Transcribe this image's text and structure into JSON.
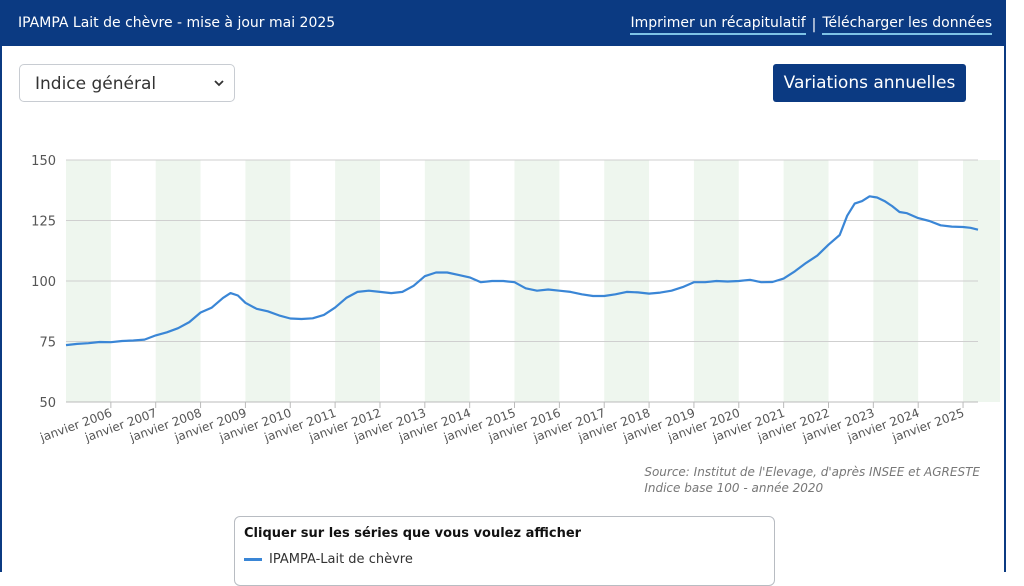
{
  "header": {
    "title": "IPAMPA Lait de chèvre - mise à jour mai 2025",
    "print_label": "Imprimer un récapitulatif",
    "separator": "|",
    "download_label": "Télécharger les données"
  },
  "controls": {
    "index_select_value": "Indice général",
    "annual_button_label": "Variations annuelles"
  },
  "source": {
    "line1": "Source: Institut de l'Elevage, d'après INSEE et AGRESTE",
    "line2": "Indice base 100 - année 2020"
  },
  "legend": {
    "title": "Cliquer sur les séries que vous voulez afficher"
  },
  "colors": {
    "accent": "#0b3a82",
    "series": "#3a86d6",
    "band": "#eef6ee"
  },
  "chart_data": {
    "type": "line",
    "title": "",
    "xlabel": "",
    "ylabel": "",
    "ylim": [
      50,
      150
    ],
    "yticks": [
      50,
      75,
      100,
      125,
      150
    ],
    "grid": true,
    "year_labels": [
      "janvier 2006",
      "janvier 2007",
      "janvier 2008",
      "janvier 2009",
      "janvier 2010",
      "janvier 2011",
      "janvier 2012",
      "janvier 2013",
      "janvier 2014",
      "janvier 2015",
      "janvier 2016",
      "janvier 2017",
      "janvier 2018",
      "janvier 2019",
      "janvier 2020",
      "janvier 2021",
      "janvier 2022",
      "janvier 2023",
      "janvier 2024",
      "janvier 2025"
    ],
    "x_range": [
      "2005-01",
      "2025-05"
    ],
    "alternate_year_bands": true,
    "series": [
      {
        "name": "IPAMPA-Lait de chèvre",
        "points": [
          [
            "2005-01",
            73.5
          ],
          [
            "2005-04",
            74
          ],
          [
            "2005-07",
            74.3
          ],
          [
            "2005-10",
            74.8
          ],
          [
            "2006-01",
            74.7
          ],
          [
            "2006-04",
            75.2
          ],
          [
            "2006-07",
            75.4
          ],
          [
            "2006-10",
            75.8
          ],
          [
            "2007-01",
            77.5
          ],
          [
            "2007-04",
            78.8
          ],
          [
            "2007-07",
            80.5
          ],
          [
            "2007-10",
            83
          ],
          [
            "2008-01",
            87
          ],
          [
            "2008-04",
            89
          ],
          [
            "2008-07",
            93
          ],
          [
            "2008-09",
            95
          ],
          [
            "2008-11",
            94
          ],
          [
            "2009-01",
            91
          ],
          [
            "2009-04",
            88.5
          ],
          [
            "2009-07",
            87.5
          ],
          [
            "2009-10",
            85.8
          ],
          [
            "2010-01",
            84.5
          ],
          [
            "2010-04",
            84.3
          ],
          [
            "2010-07",
            84.6
          ],
          [
            "2010-10",
            86
          ],
          [
            "2011-01",
            89
          ],
          [
            "2011-04",
            93
          ],
          [
            "2011-07",
            95.5
          ],
          [
            "2011-10",
            96
          ],
          [
            "2012-01",
            95.5
          ],
          [
            "2012-04",
            95
          ],
          [
            "2012-07",
            95.5
          ],
          [
            "2012-10",
            98
          ],
          [
            "2013-01",
            102
          ],
          [
            "2013-04",
            103.5
          ],
          [
            "2013-07",
            103.5
          ],
          [
            "2013-10",
            102.5
          ],
          [
            "2014-01",
            101.5
          ],
          [
            "2014-04",
            99.5
          ],
          [
            "2014-07",
            100
          ],
          [
            "2014-10",
            100
          ],
          [
            "2015-01",
            99.5
          ],
          [
            "2015-04",
            97
          ],
          [
            "2015-07",
            96
          ],
          [
            "2015-10",
            96.5
          ],
          [
            "2016-01",
            96
          ],
          [
            "2016-04",
            95.5
          ],
          [
            "2016-07",
            94.5
          ],
          [
            "2016-10",
            93.8
          ],
          [
            "2017-01",
            93.8
          ],
          [
            "2017-04",
            94.5
          ],
          [
            "2017-07",
            95.5
          ],
          [
            "2017-10",
            95.3
          ],
          [
            "2018-01",
            94.8
          ],
          [
            "2018-04",
            95.2
          ],
          [
            "2018-07",
            96
          ],
          [
            "2018-10",
            97.5
          ],
          [
            "2019-01",
            99.5
          ],
          [
            "2019-04",
            99.5
          ],
          [
            "2019-07",
            100
          ],
          [
            "2019-10",
            99.8
          ],
          [
            "2020-01",
            100
          ],
          [
            "2020-04",
            100.5
          ],
          [
            "2020-07",
            99.5
          ],
          [
            "2020-10",
            99.6
          ],
          [
            "2021-01",
            101
          ],
          [
            "2021-04",
            104
          ],
          [
            "2021-07",
            107.5
          ],
          [
            "2021-10",
            110.5
          ],
          [
            "2022-01",
            115
          ],
          [
            "2022-04",
            119
          ],
          [
            "2022-06",
            127
          ],
          [
            "2022-08",
            132
          ],
          [
            "2022-10",
            133
          ],
          [
            "2022-12",
            135
          ],
          [
            "2023-02",
            134.5
          ],
          [
            "2023-04",
            133
          ],
          [
            "2023-06",
            131
          ],
          [
            "2023-08",
            128.5
          ],
          [
            "2023-10",
            128
          ],
          [
            "2024-01",
            126
          ],
          [
            "2024-04",
            124.8
          ],
          [
            "2024-07",
            123
          ],
          [
            "2024-10",
            122.5
          ],
          [
            "2025-01",
            122.3
          ],
          [
            "2025-03",
            122
          ],
          [
            "2025-05",
            121.2
          ]
        ]
      }
    ]
  }
}
